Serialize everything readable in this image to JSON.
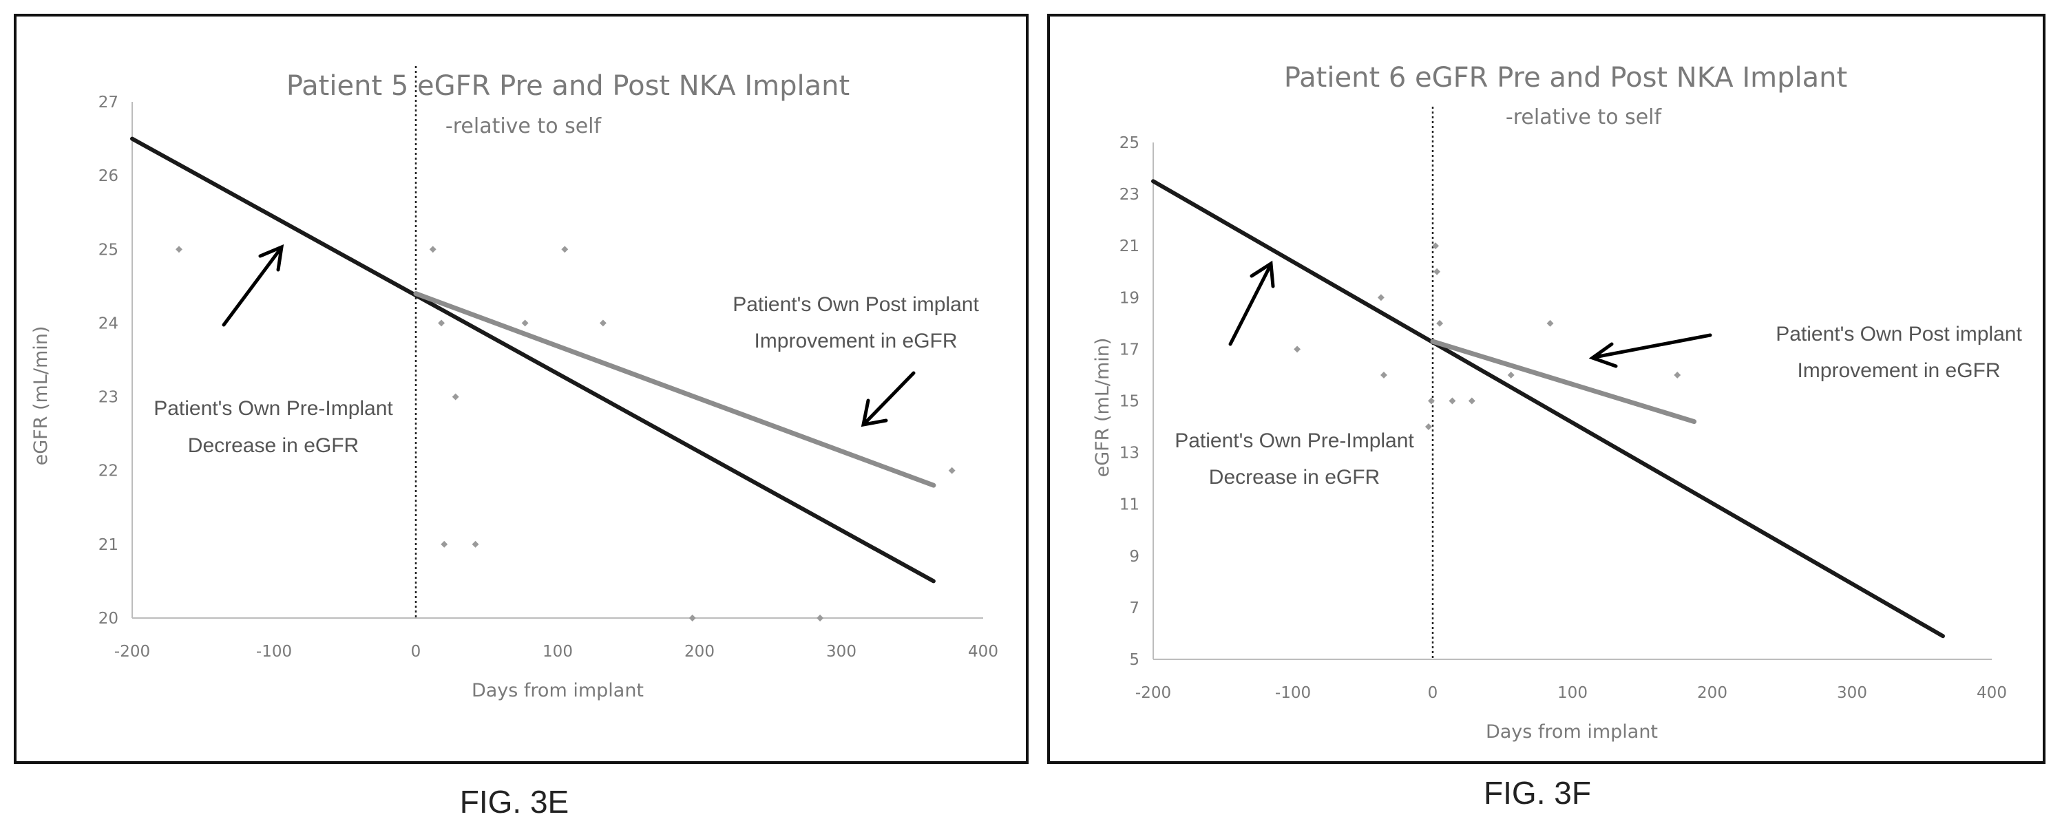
{
  "chart_data": [
    {
      "type": "scatter",
      "title": "Patient 5 eGFR Pre and Post NKA Implant",
      "subtitle": "-relative to self",
      "xlabel": "Days from implant",
      "ylabel": "eGFR (mL/min)",
      "xlim": [
        -200,
        400
      ],
      "ylim": [
        20,
        27
      ],
      "x_ticks": [
        -200,
        -100,
        0,
        100,
        200,
        300,
        400
      ],
      "y_ticks": [
        20,
        21,
        22,
        23,
        24,
        25,
        26,
        27
      ],
      "x_tick_labels": [
        "-200",
        "-100",
        "0",
        "100",
        "200",
        "300",
        "400"
      ],
      "y_tick_labels": [
        "20",
        "21",
        "22",
        "23",
        "24",
        "25",
        "26",
        "27"
      ],
      "implant_day": 0,
      "points": [
        {
          "x": -167,
          "y": 25
        },
        {
          "x": 12,
          "y": 25
        },
        {
          "x": 18,
          "y": 24
        },
        {
          "x": 28,
          "y": 23
        },
        {
          "x": 20,
          "y": 21
        },
        {
          "x": 42,
          "y": 21
        },
        {
          "x": 77,
          "y": 24
        },
        {
          "x": 105,
          "y": 25
        },
        {
          "x": 132,
          "y": 24
        },
        {
          "x": 195,
          "y": 20
        },
        {
          "x": 285,
          "y": 20
        },
        {
          "x": 378,
          "y": 22
        }
      ],
      "lines": [
        {
          "role": "pre-implant trend",
          "x": [
            -200,
            365
          ],
          "y": [
            26.5,
            20.5
          ]
        },
        {
          "role": "post-implant trend",
          "x": [
            0,
            365
          ],
          "y": [
            24.4,
            21.8
          ]
        }
      ],
      "annotations": [
        {
          "text_lines": [
            "Patient's Own Pre-Implant",
            "Decrease in eGFR"
          ]
        },
        {
          "text_lines": [
            "Patient's Own Post implant",
            "Improvement in eGFR"
          ]
        }
      ],
      "grid": false,
      "figure_label": "FIG. 3E"
    },
    {
      "type": "scatter",
      "title": "Patient 6 eGFR Pre and Post NKA Implant",
      "subtitle": "-relative to self",
      "xlabel": "Days from implant",
      "ylabel": "eGFR (mL/min)",
      "xlim": [
        -200,
        400
      ],
      "ylim": [
        5,
        25
      ],
      "x_ticks": [
        -200,
        -100,
        0,
        100,
        200,
        300,
        400
      ],
      "y_ticks": [
        5,
        7,
        9,
        11,
        13,
        15,
        17,
        19,
        21,
        23,
        25
      ],
      "x_tick_labels": [
        "-200",
        "-100",
        "0",
        "100",
        "200",
        "300",
        "400"
      ],
      "y_tick_labels": [
        "5",
        "7",
        "9",
        "11",
        "13",
        "15",
        "17",
        "19",
        "21",
        "23",
        "25"
      ],
      "implant_day": 0,
      "points": [
        {
          "x": -97,
          "y": 17
        },
        {
          "x": -37,
          "y": 19
        },
        {
          "x": -35,
          "y": 16
        },
        {
          "x": -3,
          "y": 14
        },
        {
          "x": -1,
          "y": 15
        },
        {
          "x": 2,
          "y": 21
        },
        {
          "x": 3,
          "y": 20
        },
        {
          "x": 5,
          "y": 18
        },
        {
          "x": 14,
          "y": 15
        },
        {
          "x": 28,
          "y": 15
        },
        {
          "x": 56,
          "y": 16
        },
        {
          "x": 84,
          "y": 18
        },
        {
          "x": 175,
          "y": 16
        }
      ],
      "lines": [
        {
          "role": "pre-implant trend",
          "x": [
            -200,
            365
          ],
          "y": [
            23.5,
            5.9
          ]
        },
        {
          "role": "post-implant trend",
          "x": [
            0,
            187
          ],
          "y": [
            17.3,
            14.2
          ]
        }
      ],
      "annotations": [
        {
          "text_lines": [
            "Patient's Own Pre-Implant",
            "Decrease in eGFR"
          ]
        },
        {
          "text_lines": [
            "Patient's Own Post implant",
            "Improvement in eGFR"
          ]
        }
      ],
      "grid": false,
      "figure_label": "FIG. 3F"
    }
  ]
}
